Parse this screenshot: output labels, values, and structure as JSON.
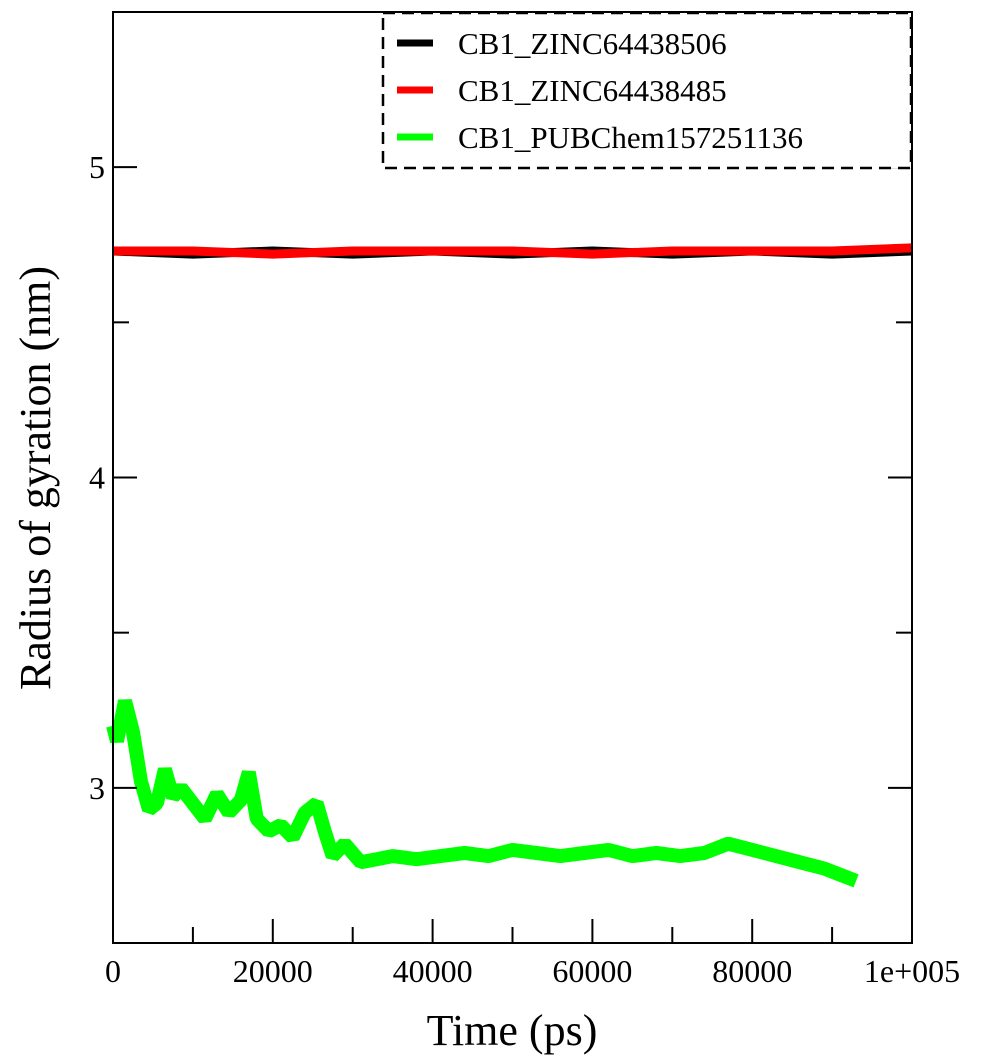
{
  "chart_data": {
    "type": "line",
    "title": "",
    "xlabel": "Time (ps)",
    "ylabel": "Radius of gyration (nm)",
    "xlim": [
      0,
      100000
    ],
    "ylim": [
      2.5,
      5.5
    ],
    "x_ticks": [
      0,
      20000,
      40000,
      60000,
      80000,
      100000
    ],
    "x_tick_labels": [
      "0",
      "20000",
      "40000",
      "60000",
      "80000",
      "1e+005"
    ],
    "y_ticks": [
      3,
      4,
      5
    ],
    "y_tick_labels": [
      "3",
      "4",
      "5"
    ],
    "grid": false,
    "legend_position": "top-right",
    "series": [
      {
        "name": "CB1_ZINC64438506",
        "color": "#000000",
        "x": [
          0,
          10000,
          20000,
          30000,
          40000,
          50000,
          60000,
          70000,
          80000,
          90000,
          100000
        ],
        "y": [
          4.73,
          4.72,
          4.73,
          4.72,
          4.73,
          4.72,
          4.73,
          4.72,
          4.73,
          4.72,
          4.73
        ]
      },
      {
        "name": "CB1_ZINC64438485",
        "color": "#ff0000",
        "x": [
          0,
          10000,
          20000,
          30000,
          40000,
          50000,
          60000,
          70000,
          80000,
          90000,
          100000
        ],
        "y": [
          4.73,
          4.73,
          4.72,
          4.73,
          4.73,
          4.73,
          4.72,
          4.73,
          4.73,
          4.73,
          4.74
        ]
      },
      {
        "name": "CB1_PUBChem157251136",
        "color": "#00ff00",
        "x": [
          0,
          500,
          1500,
          2500,
          3500,
          4500,
          5500,
          6500,
          7500,
          8500,
          10000,
          11500,
          13000,
          14500,
          16000,
          17000,
          18000,
          19500,
          21000,
          22500,
          24000,
          25500,
          26500,
          27500,
          29000,
          31000,
          33000,
          35000,
          38000,
          41000,
          44000,
          47000,
          50000,
          53000,
          56000,
          59000,
          62000,
          65000,
          68000,
          71000,
          74000,
          77000,
          80000,
          83000,
          86000,
          89000,
          91000,
          93000
        ],
        "y": [
          3.2,
          3.15,
          3.28,
          3.18,
          3.02,
          2.93,
          2.95,
          3.06,
          2.97,
          3.0,
          2.95,
          2.9,
          2.98,
          2.92,
          2.96,
          3.05,
          2.9,
          2.86,
          2.88,
          2.84,
          2.92,
          2.95,
          2.86,
          2.78,
          2.82,
          2.76,
          2.77,
          2.78,
          2.77,
          2.78,
          2.79,
          2.78,
          2.8,
          2.79,
          2.78,
          2.79,
          2.8,
          2.78,
          2.79,
          2.78,
          2.79,
          2.82,
          2.8,
          2.78,
          2.76,
          2.74,
          2.72,
          2.7
        ]
      }
    ]
  }
}
